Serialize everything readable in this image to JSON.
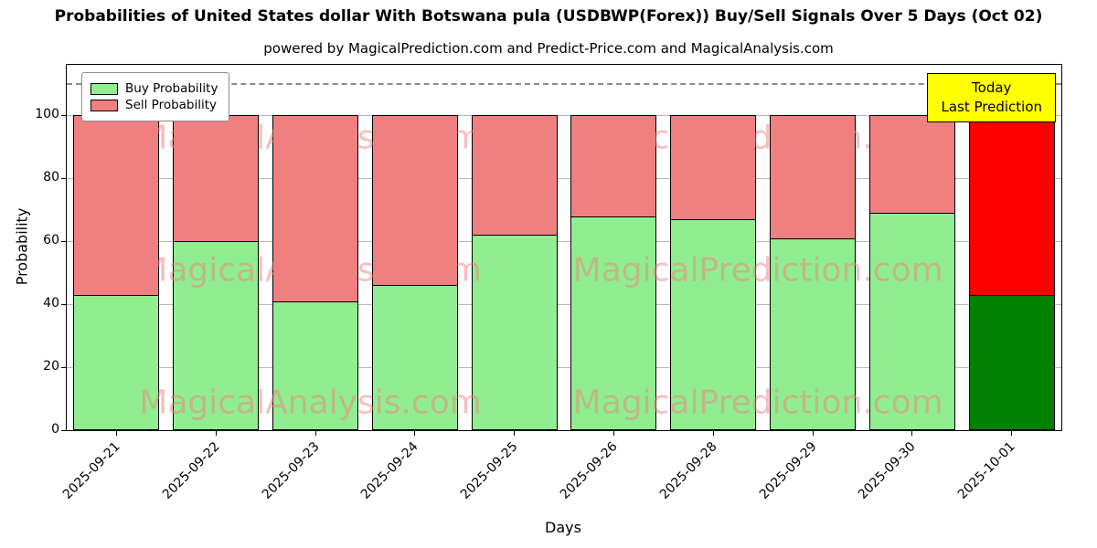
{
  "title": "Probabilities of United States dollar With Botswana pula (USDBWP(Forex)) Buy/Sell Signals Over 5 Days (Oct 02)",
  "subtitle": "powered by MagicalPrediction.com and Predict-Price.com and MagicalAnalysis.com",
  "watermarks": {
    "texts": [
      "MagicalAnalysis.com",
      "MagicalPrediction.com"
    ],
    "color": "#f08080"
  },
  "chart_data": {
    "type": "bar",
    "stacked": true,
    "title": "Probabilities of United States dollar With Botswana pula (USDBWP(Forex)) Buy/Sell Signals Over 5 Days (Oct 02)",
    "xlabel": "Days",
    "ylabel": "Probability",
    "categories": [
      "2025-09-21",
      "2025-09-22",
      "2025-09-23",
      "2025-09-24",
      "2025-09-25",
      "2025-09-26",
      "2025-09-28",
      "2025-09-29",
      "2025-09-30",
      "2025-10-01"
    ],
    "series": [
      {
        "name": "Buy Probability",
        "color": "#90ee90",
        "values": [
          43,
          60,
          41,
          46,
          62,
          68,
          67,
          61,
          69,
          43
        ]
      },
      {
        "name": "Sell Probability",
        "color": "#f08080",
        "values": [
          57,
          40,
          59,
          54,
          38,
          32,
          33,
          39,
          31,
          57
        ]
      }
    ],
    "highlight_last_bar": {
      "buy_color": "#008000",
      "sell_color": "#ff0000"
    },
    "ylim": [
      0,
      116
    ],
    "yticks": [
      0,
      20,
      40,
      60,
      80,
      100
    ],
    "dashed_line_y": 110,
    "grid": "horizontal",
    "legend_position": "upper left",
    "annotation": {
      "lines": [
        "Today",
        "Last Prediction"
      ],
      "bg": "#ffff00"
    }
  }
}
